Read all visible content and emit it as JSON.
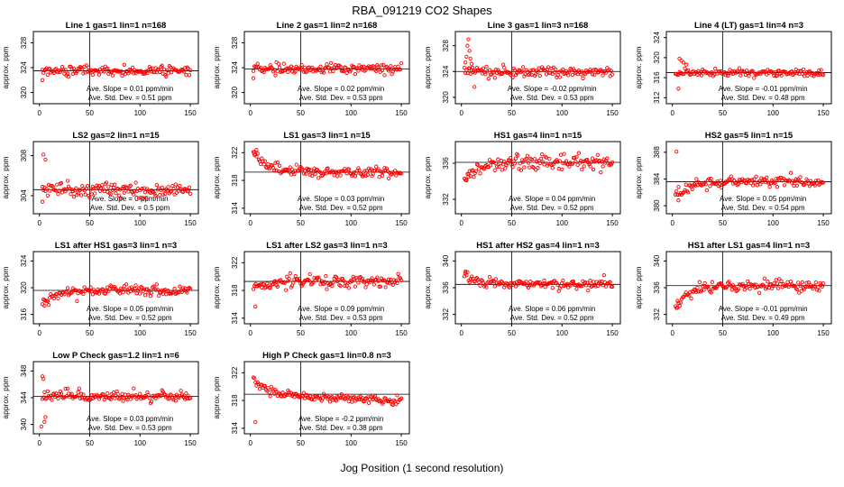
{
  "page": {
    "title": "RBA_091219  CO2 Shapes",
    "x_axis_label": "Jog Position (1 second resolution)"
  },
  "style": {
    "point_color": "#FF0000",
    "axis_color": "#000000"
  },
  "chart_data": {
    "type": "scatter",
    "ylabel": "approx. ppm",
    "xticks": [
      0,
      50,
      100,
      150
    ],
    "xlim": [
      -6,
      158
    ],
    "vline_x": 50,
    "grid": false,
    "plots": [
      {
        "title": "Line 1 gas=1 lin=1 n=168",
        "yticks": [
          320,
          324,
          328
        ],
        "ylim": [
          318.2,
          329.8
        ],
        "mean": 323.5,
        "sd": 0.51,
        "offset": 0,
        "drop": 0,
        "outliers": [
          [
            3,
            322.0
          ]
        ],
        "slope_label": "Ave. Slope =  0.01  ppm/min",
        "sd_label": "Ave. Std. Dev. =  0.51  ppm"
      },
      {
        "title": "Line 2 gas=1 lin=2 n=168",
        "yticks": [
          320,
          324,
          328
        ],
        "ylim": [
          318.2,
          329.8
        ],
        "mean": 323.8,
        "sd": 0.53,
        "offset": 0,
        "drop": 0,
        "outliers": [
          [
            3,
            322.3
          ]
        ],
        "slope_label": "Ave. Slope =  0.02  ppm/min",
        "sd_label": "Ave. Std. Dev. =  0.53  ppm"
      },
      {
        "title": "Line 3 gas=1 lin=3 n=168",
        "yticks": [
          320,
          324,
          328
        ],
        "ylim": [
          319.0,
          330.2
        ],
        "mean": 324.0,
        "sd": 0.53,
        "offset": 0.4,
        "drop": 0,
        "outliers": [
          [
            4,
            325.4
          ],
          [
            5,
            326.3
          ],
          [
            6,
            328.0
          ],
          [
            7,
            329.0
          ],
          [
            8,
            327.2
          ],
          [
            9,
            326.0
          ],
          [
            10,
            325.2
          ],
          [
            11,
            324.6
          ],
          [
            13,
            321.6
          ]
        ],
        "slope_label": "Ave. Slope =  -0.02  ppm/min",
        "sd_label": "Ave. Std. Dev. =  0.53  ppm"
      },
      {
        "title": "Line 4 (LT) gas=1 lin=4 n=3",
        "yticks": [
          312,
          316,
          320,
          324
        ],
        "ylim": [
          310.8,
          325.2
        ],
        "mean": 317.0,
        "sd": 0.48,
        "offset": 0,
        "drop": 0,
        "outliers": [
          [
            7,
            319.8
          ],
          [
            9,
            319.4
          ],
          [
            11,
            319.0
          ],
          [
            14,
            318.6
          ],
          [
            6,
            313.8
          ]
        ],
        "slope_label": "Ave. Slope =  -0.01  ppm/min",
        "sd_label": "Ave. Std. Dev. =  0.48  ppm"
      },
      {
        "title": "LS2 gas=2 lin=1 n=15",
        "yticks": [
          304,
          308
        ],
        "ylim": [
          302.2,
          309.4
        ],
        "mean": 304.6,
        "sd": 0.5,
        "offset": 0,
        "drop": 0,
        "outliers": [
          [
            4,
            308.1
          ],
          [
            6,
            307.6
          ],
          [
            3,
            303.4
          ]
        ],
        "slope_label": "Ave. Slope =  0  ppm/min",
        "sd_label": "Ave. Std. Dev. =  0.5  ppm"
      },
      {
        "title": "LS1 gas=3 lin=1 n=15",
        "yticks": [
          314,
          318,
          322
        ],
        "ylim": [
          313.2,
          323.6
        ],
        "mean": 319.2,
        "sd": 0.52,
        "offset": 3.0,
        "drop": 0,
        "outliers": [
          [
            4,
            322.1
          ],
          [
            6,
            322.4
          ]
        ],
        "slope_label": "Ave. Slope =  0.03  ppm/min",
        "sd_label": "Ave. Std. Dev. =  0.52  ppm"
      },
      {
        "title": "HS1 gas=4 lin=1 n=15",
        "yticks": [
          332,
          336
        ],
        "ylim": [
          330.4,
          338.4
        ],
        "mean": 336.1,
        "sd": 0.52,
        "offset": -1.9,
        "drop": 0,
        "outliers": [
          [
            5,
            334.1
          ],
          [
            7,
            334.5
          ]
        ],
        "slope_label": "Ave. Slope =  0.04  ppm/min",
        "sd_label": "Ave. Std. Dev. =  0.52  ppm"
      },
      {
        "title": "HS2 gas=5 lin=1 n=15",
        "yticks": [
          380,
          384,
          388
        ],
        "ylim": [
          378.8,
          389.6
        ],
        "mean": 383.6,
        "sd": 0.54,
        "offset": -2.2,
        "drop": 0,
        "outliers": [
          [
            4,
            388.1
          ],
          [
            6,
            380.8
          ]
        ],
        "slope_label": "Ave. Slope =  0.05  ppm/min",
        "sd_label": "Ave. Std. Dev. =  0.54  ppm"
      },
      {
        "title": "LS1 after HS1 gas=3 lin=1 n=3",
        "yticks": [
          316,
          320,
          324
        ],
        "ylim": [
          314.6,
          325.4
        ],
        "mean": 319.6,
        "sd": 0.52,
        "offset": -2.0,
        "drop": 0,
        "outliers": [
          [
            5,
            317.3
          ]
        ],
        "slope_label": "Ave. Slope =  0.05  ppm/min",
        "sd_label": "Ave. Std. Dev. =  0.52  ppm"
      },
      {
        "title": "LS1 after LS2 gas=3 lin=1 n=3",
        "yticks": [
          314,
          318,
          322
        ],
        "ylim": [
          313.2,
          323.6
        ],
        "mean": 319.3,
        "sd": 0.53,
        "offset": -1.2,
        "drop": 0,
        "outliers": [
          [
            5,
            315.7
          ]
        ],
        "slope_label": "Ave. Slope =  0.09  ppm/min",
        "sd_label": "Ave. Std. Dev. =  0.53  ppm"
      },
      {
        "title": "HS1 after HS2 gas=4 lin=1 n=3",
        "yticks": [
          332,
          336,
          340
        ],
        "ylim": [
          330.6,
          341.4
        ],
        "mean": 336.5,
        "sd": 0.52,
        "offset": 1.6,
        "drop": 0,
        "outliers": [
          [
            4,
            338.2
          ]
        ],
        "slope_label": "Ave. Slope =  0.06  ppm/min",
        "sd_label": "Ave. Std. Dev. =  0.52  ppm"
      },
      {
        "title": "HS1 after LS1 gas=4 lin=1 n=3",
        "yticks": [
          332,
          336,
          340
        ],
        "ylim": [
          330.6,
          341.4
        ],
        "mean": 336.3,
        "sd": 0.49,
        "offset": -3.4,
        "drop": 0,
        "outliers": [
          [
            5,
            333.0
          ],
          [
            6,
            333.7
          ]
        ],
        "slope_label": "Ave. Slope =  -0.01  ppm/min",
        "sd_label": "Ave. Std. Dev. =  0.49  ppm"
      },
      {
        "title": "Low P Check gas=1.2 lin=1 n=6",
        "yticks": [
          340,
          344,
          348
        ],
        "ylim": [
          338.6,
          349.4
        ],
        "mean": 344.2,
        "sd": 0.53,
        "offset": 0,
        "drop": 0,
        "outliers": [
          [
            3,
            347.2
          ],
          [
            4,
            346.8
          ],
          [
            5,
            340.4
          ],
          [
            6,
            341.1
          ],
          [
            2,
            339.7
          ]
        ],
        "slope_label": "Ave. Slope =  0.03  ppm/min",
        "sd_label": "Ave. Std. Dev. =  0.53  ppm"
      },
      {
        "title": "High P Check gas=1 lin=0.8 n=3",
        "yticks": [
          314,
          318,
          322
        ],
        "ylim": [
          313.2,
          323.6
        ],
        "mean": 318.9,
        "sd": 0.38,
        "offset": 2.2,
        "drop": 0.9,
        "outliers": [
          [
            5,
            314.9
          ]
        ],
        "slope_label": "Ave. Slope =  -0.2  ppm/min",
        "sd_label": "Ave. Std. Dev. =  0.38  ppm"
      }
    ]
  }
}
